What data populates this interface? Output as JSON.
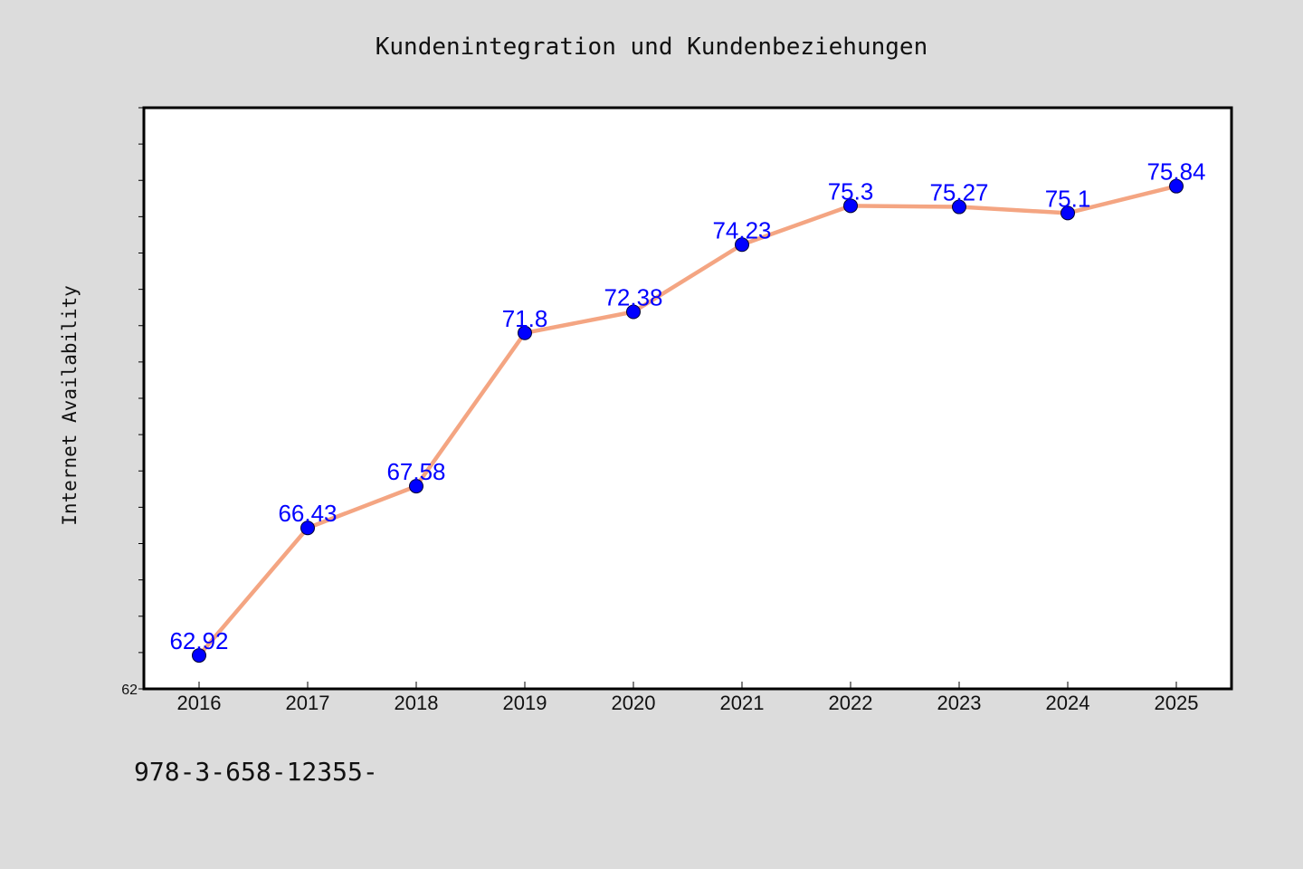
{
  "chart_data": {
    "type": "line",
    "title": "Kundenintegration und Kundenbeziehungen",
    "ylabel": "Internet Availability",
    "xlabel": "",
    "categories": [
      "2016",
      "2017",
      "2018",
      "2019",
      "2020",
      "2021",
      "2022",
      "2023",
      "2024",
      "2025"
    ],
    "series": [
      {
        "values": [
          62.92,
          66.43,
          67.58,
          71.8,
          72.38,
          74.23,
          75.3,
          75.27,
          75.1,
          75.84
        ],
        "labels": [
          "62.92",
          "66.43",
          "67.58",
          "71.8",
          "72.38",
          "74.23",
          "75.3",
          "75.27",
          "75.1",
          "75.84"
        ]
      }
    ],
    "ylim": [
      62,
      78
    ],
    "y_tick_labels": [
      "62"
    ],
    "grid": false,
    "colors": {
      "line": "#f4a582",
      "marker": "#0000ff",
      "label": "#0000ff",
      "background": "#dcdcdc",
      "plot_background": "#ffffff"
    }
  },
  "footnote": "978-3-658-12355-"
}
